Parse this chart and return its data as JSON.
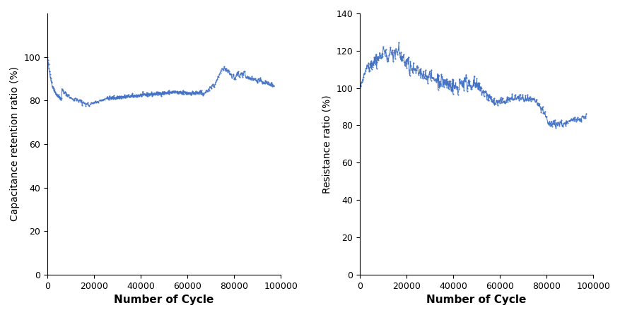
{
  "line_color": "#4472C4",
  "markersize": 1.5,
  "linewidth": 0.7,
  "xlabel": "Number of Cycle",
  "ylabel_left": "Capacitance retention ratio (%)",
  "ylabel_right": "Resistance ratio (%)",
  "xlabel_fontsize": 11,
  "ylabel_fontsize": 10,
  "tick_fontsize": 9,
  "xlim": [
    0,
    100000
  ],
  "ylim_left": [
    0,
    120
  ],
  "ylim_right": [
    0,
    140
  ],
  "yticks_left": [
    0,
    20,
    40,
    60,
    80,
    100
  ],
  "yticks_right": [
    0,
    20,
    40,
    60,
    80,
    100,
    120,
    140
  ],
  "xticks": [
    0,
    20000,
    40000,
    60000,
    80000,
    100000
  ]
}
